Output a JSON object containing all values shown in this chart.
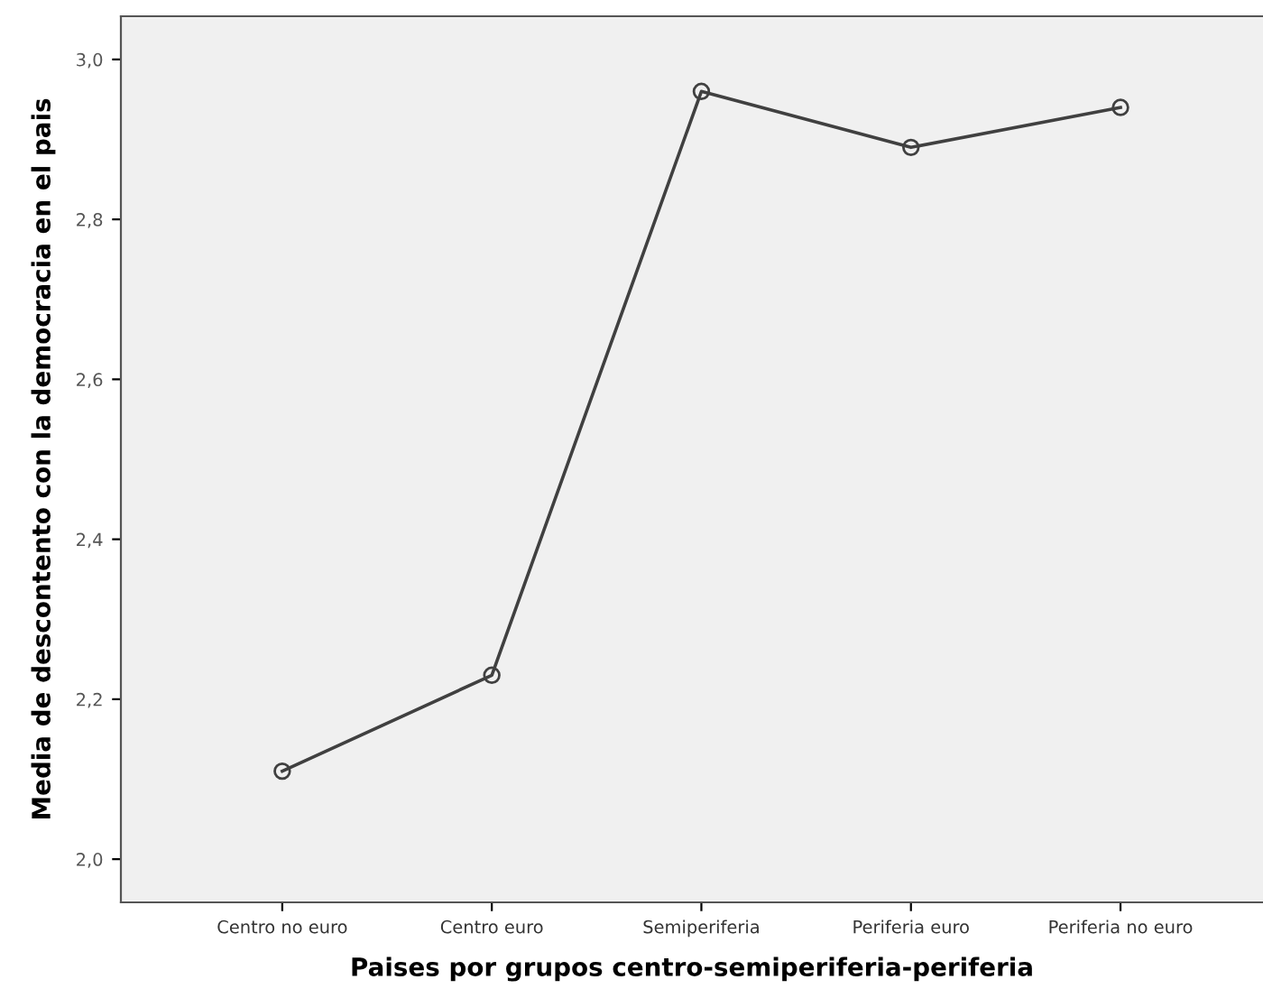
{
  "chart_data": {
    "type": "line",
    "xlabel": "Paises por grupos centro-semiperiferia-periferia",
    "ylabel": "Media de descontento con la democracia en el pais",
    "categories": [
      "Centro no euro",
      "Centro euro",
      "Semiperiferia",
      "Periferia euro",
      "Periferia no euro"
    ],
    "series": [
      {
        "color": "#404040",
        "values": [
          2.11,
          2.23,
          2.96,
          2.89,
          2.94
        ]
      }
    ],
    "ylim": [
      1.946,
      3.054
    ],
    "yticks": [
      {
        "value": 2.0,
        "label": "2,0"
      },
      {
        "value": 2.2,
        "label": "2,2"
      },
      {
        "value": 2.4,
        "label": "2,4"
      },
      {
        "value": 2.6,
        "label": "2,6"
      },
      {
        "value": 2.8,
        "label": "2,8"
      },
      {
        "value": 3.0,
        "label": "3,0"
      }
    ],
    "grid": false,
    "marker": "circle",
    "line_style": "solid"
  }
}
